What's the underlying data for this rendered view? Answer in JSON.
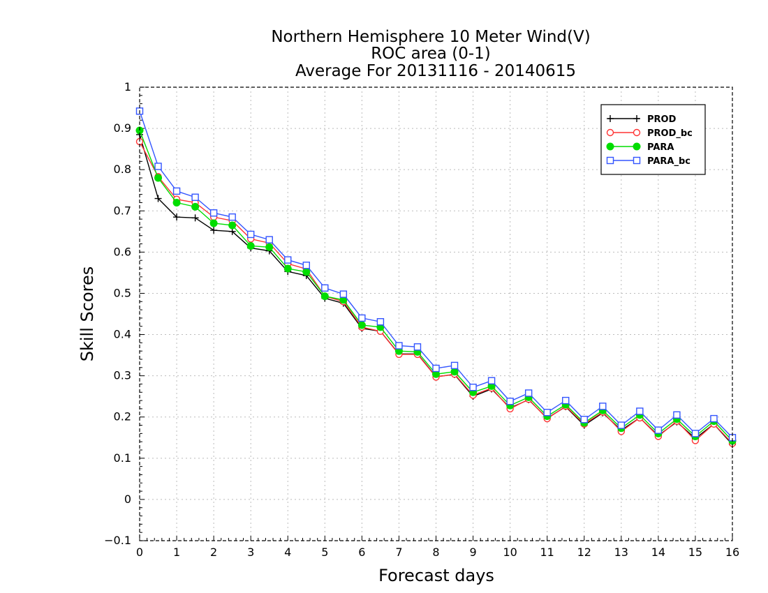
{
  "chart_data": {
    "type": "line",
    "title_lines": [
      "Northern Hemisphere 10 Meter Wind(V)",
      "ROC area (0-1)",
      "Average For 20131116 - 20140615"
    ],
    "xlabel": "Forecast days",
    "ylabel": "Skill Scores",
    "xlim": [
      0,
      16
    ],
    "ylim": [
      -0.1,
      1
    ],
    "xticks": [
      0,
      1,
      2,
      3,
      4,
      5,
      6,
      7,
      8,
      9,
      10,
      11,
      12,
      13,
      14,
      15,
      16
    ],
    "xtick_labels": [
      "0",
      "1",
      "2",
      "3",
      "4",
      "5",
      "6",
      "7",
      "8",
      "9",
      "10",
      "11",
      "12",
      "13",
      "14",
      "15",
      "16"
    ],
    "yticks": [
      -0.1,
      0,
      0.1,
      0.2,
      0.3,
      0.4,
      0.5,
      0.6,
      0.7,
      0.8,
      0.9,
      1
    ],
    "ytick_labels": [
      "−0.1",
      "0",
      "0.1",
      "0.2",
      "0.3",
      "0.4",
      "0.5",
      "0.6",
      "0.7",
      "0.8",
      "0.9",
      "1"
    ],
    "grid": true,
    "legend_position": "top-right",
    "x": [
      0,
      0.5,
      1,
      1.5,
      2,
      2.5,
      3,
      3.5,
      4,
      4.5,
      5,
      5.5,
      6,
      6.5,
      7,
      7.5,
      8,
      8.5,
      9,
      9.5,
      10,
      10.5,
      11,
      11.5,
      12,
      12.5,
      13,
      13.5,
      14,
      14.5,
      15,
      15.5,
      16
    ],
    "series": [
      {
        "name": "PROD",
        "color": "#000000",
        "marker": "plus",
        "values": [
          0.885,
          0.73,
          0.685,
          0.683,
          0.653,
          0.65,
          0.61,
          0.603,
          0.553,
          0.543,
          0.488,
          0.476,
          0.415,
          0.408,
          0.353,
          0.353,
          0.298,
          0.303,
          0.25,
          0.268,
          0.222,
          0.242,
          0.197,
          0.225,
          0.18,
          0.21,
          0.168,
          0.198,
          0.155,
          0.188,
          0.148,
          0.183,
          0.133
        ]
      },
      {
        "name": "PROD_bc",
        "color": "#ff3333",
        "marker": "open-circle",
        "values": [
          0.868,
          0.783,
          0.728,
          0.72,
          0.685,
          0.676,
          0.632,
          0.622,
          0.572,
          0.559,
          0.493,
          0.48,
          0.418,
          0.408,
          0.352,
          0.352,
          0.297,
          0.304,
          0.253,
          0.27,
          0.22,
          0.243,
          0.196,
          0.226,
          0.183,
          0.212,
          0.165,
          0.198,
          0.153,
          0.19,
          0.143,
          0.183,
          0.136
        ]
      },
      {
        "name": "PARA",
        "color": "#00dd00",
        "marker": "filled-circle",
        "values": [
          0.895,
          0.78,
          0.72,
          0.71,
          0.67,
          0.665,
          0.615,
          0.612,
          0.56,
          0.552,
          0.493,
          0.484,
          0.423,
          0.418,
          0.36,
          0.358,
          0.304,
          0.31,
          0.26,
          0.275,
          0.228,
          0.248,
          0.202,
          0.23,
          0.186,
          0.216,
          0.173,
          0.205,
          0.16,
          0.195,
          0.153,
          0.19,
          0.142
        ]
      },
      {
        "name": "PARA_bc",
        "color": "#3355ff",
        "marker": "open-square",
        "values": [
          0.942,
          0.808,
          0.748,
          0.733,
          0.695,
          0.685,
          0.643,
          0.63,
          0.581,
          0.568,
          0.513,
          0.498,
          0.44,
          0.431,
          0.373,
          0.37,
          0.318,
          0.325,
          0.272,
          0.288,
          0.238,
          0.258,
          0.211,
          0.24,
          0.194,
          0.226,
          0.18,
          0.214,
          0.168,
          0.205,
          0.16,
          0.196,
          0.15
        ]
      }
    ]
  }
}
